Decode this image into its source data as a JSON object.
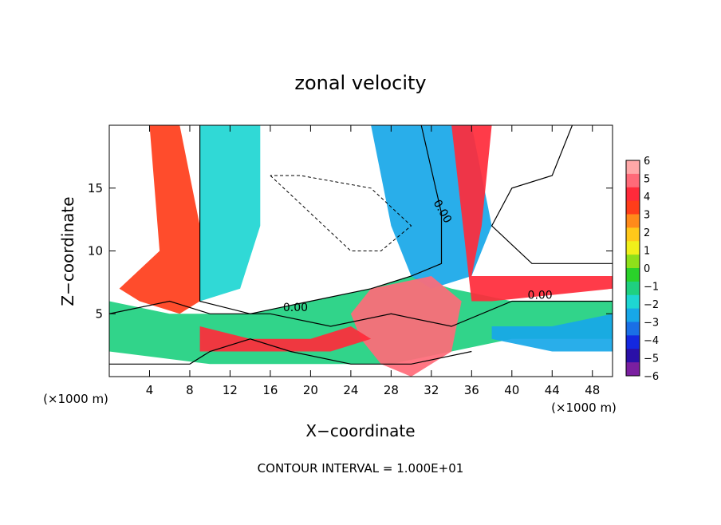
{
  "chart_data": {
    "type": "heatmap",
    "title": "zonal velocity",
    "xlabel": "X−coordinate",
    "ylabel": "Z−coordinate",
    "xunit": "(×1000 m)",
    "xunit_right": "(×1000 m)",
    "xlim": [
      0,
      50
    ],
    "ylim": [
      0,
      20
    ],
    "xticks": [
      4,
      8,
      12,
      16,
      20,
      24,
      28,
      32,
      36,
      40,
      44,
      48
    ],
    "yticks": [
      5,
      10,
      15
    ],
    "contour_interval_text": "CONTOUR INTERVAL = 1.000E+01",
    "contour_labels": [
      "0.00",
      "0.00",
      "0.00"
    ],
    "colorbar": {
      "ticks": [
        "6",
        "5",
        "4",
        "3",
        "2",
        "1",
        "0",
        "−1",
        "−2",
        "−3",
        "−4",
        "−5",
        "−6"
      ],
      "min": -6,
      "max": 6,
      "colors": [
        "#7a1fa0",
        "#2a10a8",
        "#1428e0",
        "#1a6fe6",
        "#17a7e8",
        "#1ed6d2",
        "#1fd080",
        "#2ad22a",
        "#8ee01a",
        "#f0f01a",
        "#ffc81a",
        "#ff8a1a",
        "#ff3d1a",
        "#ff2a3a",
        "#ff6a78",
        "#ffa8a8"
      ]
    },
    "bands": [
      {
        "name": "left-plume",
        "points": [
          [
            4,
            20
          ],
          [
            7,
            20
          ],
          [
            9,
            12
          ],
          [
            9,
            6
          ],
          [
            7,
            5
          ],
          [
            3,
            6
          ],
          [
            1,
            7
          ],
          [
            5,
            10
          ]
        ],
        "value": 3
      },
      {
        "name": "left-plume-core",
        "points": [
          [
            9,
            20
          ],
          [
            15,
            20
          ],
          [
            15,
            12
          ],
          [
            13,
            7
          ],
          [
            9,
            6
          ]
        ],
        "value": -2
      },
      {
        "name": "low-jet",
        "points": [
          [
            0,
            6
          ],
          [
            6,
            5
          ],
          [
            14,
            5
          ],
          [
            20,
            6
          ],
          [
            26,
            7
          ],
          [
            30,
            8
          ],
          [
            34,
            7
          ],
          [
            40,
            6
          ],
          [
            50,
            6
          ],
          [
            50,
            3
          ],
          [
            40,
            3
          ],
          [
            34,
            2
          ],
          [
            28,
            1
          ],
          [
            20,
            1
          ],
          [
            10,
            1
          ],
          [
            0,
            2
          ]
        ],
        "value": -1
      },
      {
        "name": "right-plume",
        "points": [
          [
            26,
            20
          ],
          [
            36,
            20
          ],
          [
            38,
            12
          ],
          [
            36,
            8
          ],
          [
            32,
            7
          ],
          [
            30,
            8
          ],
          [
            28,
            12
          ]
        ],
        "value": -3
      },
      {
        "name": "right-upper-warm",
        "points": [
          [
            34,
            20
          ],
          [
            38,
            20
          ],
          [
            37,
            12
          ],
          [
            36,
            8
          ],
          [
            40,
            8
          ],
          [
            50,
            8
          ],
          [
            50,
            7
          ],
          [
            38,
            6
          ],
          [
            36,
            6
          ]
        ],
        "value": 4
      },
      {
        "name": "center-warm",
        "points": [
          [
            26,
            7
          ],
          [
            32,
            8
          ],
          [
            35,
            6
          ],
          [
            34,
            2
          ],
          [
            30,
            0
          ],
          [
            27,
            1
          ],
          [
            25,
            3
          ],
          [
            24,
            5
          ]
        ],
        "value": 5
      },
      {
        "name": "right-low-cool",
        "points": [
          [
            38,
            4
          ],
          [
            44,
            4
          ],
          [
            50,
            5
          ],
          [
            50,
            2
          ],
          [
            44,
            2
          ],
          [
            38,
            3
          ]
        ],
        "value": -3
      },
      {
        "name": "left-low-warm",
        "points": [
          [
            9,
            4
          ],
          [
            14,
            3
          ],
          [
            20,
            3
          ],
          [
            24,
            4
          ],
          [
            26,
            3
          ],
          [
            22,
            2
          ],
          [
            14,
            2
          ],
          [
            9,
            2
          ]
        ],
        "value": 4
      }
    ]
  }
}
